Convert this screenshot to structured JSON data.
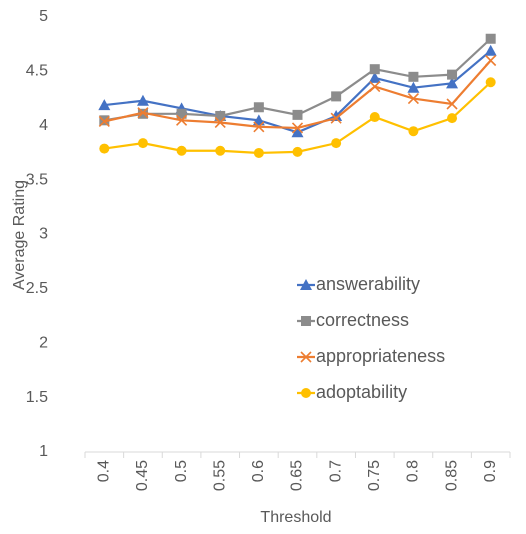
{
  "chart_data": {
    "type": "line",
    "x_label": "Threshold",
    "y_label": "Average Rating",
    "categories": [
      "0.4",
      "0.45",
      "0.5",
      "0.55",
      "0.6",
      "0.65",
      "0.7",
      "0.75",
      "0.8",
      "0.85",
      "0.9"
    ],
    "series": [
      {
        "name": "answerability",
        "color": "#4472c4",
        "marker": "triangle",
        "values": [
          4.19,
          4.23,
          4.16,
          4.09,
          4.05,
          3.94,
          4.09,
          4.44,
          4.35,
          4.39,
          4.69
        ]
      },
      {
        "name": "correctness",
        "color": "#8c8c8c",
        "marker": "square",
        "values": [
          4.05,
          4.11,
          4.11,
          4.09,
          4.17,
          4.1,
          4.27,
          4.52,
          4.45,
          4.47,
          4.8
        ]
      },
      {
        "name": "appropriateness",
        "color": "#ed7d31",
        "marker": "x",
        "values": [
          4.04,
          4.12,
          4.05,
          4.03,
          3.99,
          3.98,
          4.07,
          4.36,
          4.25,
          4.2,
          4.6
        ]
      },
      {
        "name": "adoptability",
        "color": "#ffc000",
        "marker": "circle",
        "values": [
          3.79,
          3.84,
          3.77,
          3.77,
          3.75,
          3.76,
          3.84,
          4.08,
          3.95,
          4.07,
          4.4
        ]
      }
    ],
    "ylim": [
      1,
      5
    ],
    "yticks": [
      1,
      1.5,
      2,
      2.5,
      3,
      3.5,
      4,
      4.5,
      5
    ],
    "grid": false,
    "legend": "lower right"
  }
}
